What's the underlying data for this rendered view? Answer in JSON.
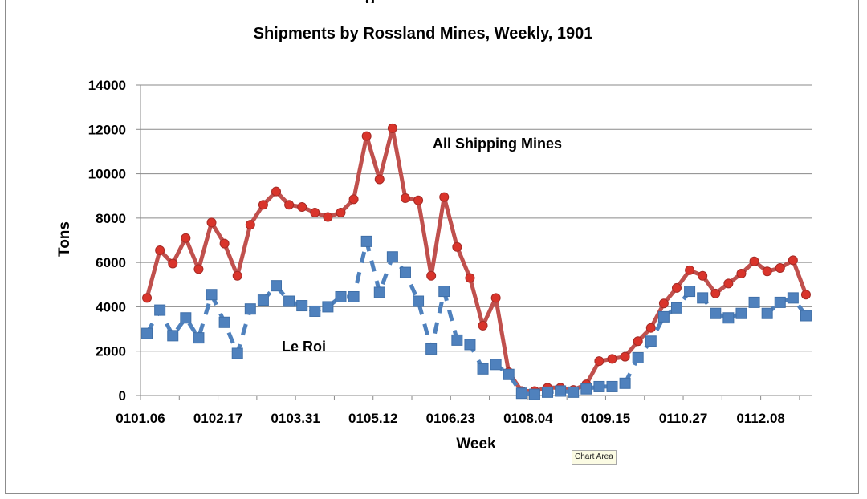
{
  "chart_data": {
    "type": "line",
    "title": "Shipments by Rossland Mines, Weekly, 1901",
    "xlabel": "Week",
    "ylabel": "Tons",
    "ylim": [
      0,
      14000
    ],
    "yticks": [
      0,
      2000,
      4000,
      6000,
      8000,
      10000,
      12000,
      14000
    ],
    "xtick_labels": [
      "0101.06",
      "0102.17",
      "0103.31",
      "0105.12",
      "0106.23",
      "0108.04",
      "0109.15",
      "0110.27",
      "0112.08"
    ],
    "grid": true,
    "series": [
      {
        "name": "All Shipping Mines",
        "color": "#c0504d",
        "style": "solid",
        "marker": "circle",
        "values": [
          4400,
          6550,
          5950,
          7100,
          5700,
          7800,
          6850,
          5400,
          7700,
          8600,
          9200,
          8600,
          8500,
          8250,
          8050,
          8250,
          8850,
          11700,
          9750,
          12050,
          8900,
          8800,
          5400,
          8950,
          6700,
          5300,
          3150,
          4400,
          1050,
          200,
          200,
          350,
          350,
          250,
          500,
          1550,
          1650,
          1750,
          2450,
          3050,
          4150,
          4850,
          5650,
          5400,
          4600,
          5050,
          5500,
          6050,
          5600,
          5750,
          6100,
          4550
        ]
      },
      {
        "name": "Le Roi",
        "color": "#4f81bd",
        "style": "dashed",
        "marker": "square",
        "values": [
          2800,
          3850,
          2700,
          3500,
          2600,
          4550,
          3300,
          1900,
          3900,
          4300,
          4950,
          4250,
          4050,
          3800,
          4000,
          4450,
          4450,
          6950,
          4650,
          6250,
          5550,
          4250,
          2100,
          4700,
          2500,
          2300,
          1200,
          1400,
          950,
          100,
          50,
          150,
          200,
          150,
          300,
          400,
          400,
          550,
          1700,
          2450,
          3550,
          3950,
          4700,
          4400,
          3700,
          3500,
          3700,
          4200,
          3700,
          4200,
          4400,
          3600
        ]
      }
    ],
    "annotations": [
      "All Shipping Mines",
      "Le Roi"
    ]
  },
  "tooltip": "Chart Area",
  "title_fragment": "g"
}
